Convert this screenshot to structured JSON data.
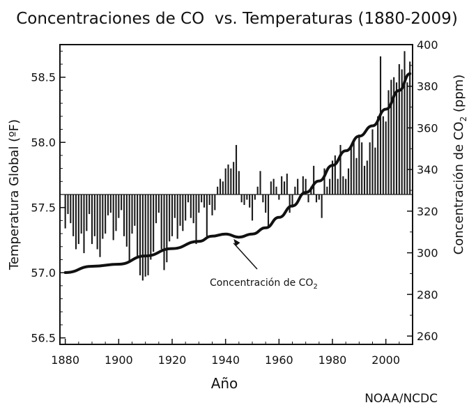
{
  "chart_data": {
    "type": "bar",
    "title": "Concentraciones de CO  vs. Temperaturas (1880-2009)",
    "xlabel": "Año",
    "ylabel_left": "Temperatura Global (ºF)",
    "ylabel_right_main": "Concentración de CO",
    "ylabel_right_sub": "2",
    "ylabel_right_end": " (ppm)",
    "xlim": [
      1878,
      2010
    ],
    "ylim_left": [
      56.45,
      58.75
    ],
    "ylim_right": [
      256,
      400
    ],
    "x_ticks": [
      "1880",
      "1900",
      "1920",
      "1940",
      "1960",
      "1980",
      "2000"
    ],
    "y_left_ticks": [
      "56.5",
      "57.0",
      "57.5",
      "58.0",
      "58.5"
    ],
    "y_right_ticks": [
      "260",
      "280",
      "300",
      "320",
      "340",
      "360",
      "380",
      "400"
    ],
    "bar_baseline": 57.6,
    "annotation": {
      "text": "Concentración de CO",
      "sub": "2",
      "arrow_target": [
        1943,
        308
      ]
    },
    "source": "NOAA/NCDC",
    "series": [
      {
        "name": "Temperatura Global (ºF)",
        "axis": "left",
        "x": [
          1880,
          1881,
          1882,
          1883,
          1884,
          1885,
          1886,
          1887,
          1888,
          1889,
          1890,
          1891,
          1892,
          1893,
          1894,
          1895,
          1896,
          1897,
          1898,
          1899,
          1900,
          1901,
          1902,
          1903,
          1904,
          1905,
          1906,
          1907,
          1908,
          1909,
          1910,
          1911,
          1912,
          1913,
          1914,
          1915,
          1916,
          1917,
          1918,
          1919,
          1920,
          1921,
          1922,
          1923,
          1924,
          1925,
          1926,
          1927,
          1928,
          1929,
          1930,
          1931,
          1932,
          1933,
          1934,
          1935,
          1936,
          1937,
          1938,
          1939,
          1940,
          1941,
          1942,
          1943,
          1944,
          1945,
          1946,
          1947,
          1948,
          1949,
          1950,
          1951,
          1952,
          1953,
          1954,
          1955,
          1956,
          1957,
          1958,
          1959,
          1960,
          1961,
          1962,
          1963,
          1964,
          1965,
          1966,
          1967,
          1968,
          1969,
          1970,
          1971,
          1972,
          1973,
          1974,
          1975,
          1976,
          1977,
          1978,
          1979,
          1980,
          1981,
          1982,
          1983,
          1984,
          1985,
          1986,
          1987,
          1988,
          1989,
          1990,
          1991,
          1992,
          1993,
          1994,
          1995,
          1996,
          1997,
          1998,
          1999,
          2000,
          2001,
          2002,
          2003,
          2004,
          2005,
          2006,
          2007,
          2008,
          2009
        ],
        "values": [
          57.34,
          57.45,
          57.38,
          57.28,
          57.18,
          57.22,
          57.3,
          57.15,
          57.32,
          57.45,
          57.22,
          57.28,
          57.18,
          57.12,
          57.26,
          57.3,
          57.44,
          57.46,
          57.25,
          57.32,
          57.42,
          57.48,
          57.28,
          57.2,
          57.08,
          57.3,
          57.36,
          57.12,
          56.98,
          56.94,
          56.97,
          56.98,
          57.1,
          57.16,
          57.38,
          57.46,
          57.18,
          57.02,
          57.08,
          57.24,
          57.28,
          57.42,
          57.26,
          57.36,
          57.32,
          57.4,
          57.54,
          57.42,
          57.38,
          57.22,
          57.46,
          57.54,
          57.5,
          57.28,
          57.52,
          57.44,
          57.48,
          57.66,
          57.72,
          57.7,
          57.8,
          57.83,
          57.8,
          57.85,
          57.98,
          57.78,
          57.54,
          57.52,
          57.56,
          57.5,
          57.4,
          57.56,
          57.66,
          57.78,
          57.54,
          57.46,
          57.34,
          57.7,
          57.72,
          57.66,
          57.56,
          57.74,
          57.7,
          57.76,
          57.46,
          57.5,
          57.66,
          57.72,
          57.58,
          57.74,
          57.72,
          57.54,
          57.66,
          57.82,
          57.54,
          57.56,
          57.42,
          57.8,
          57.66,
          57.72,
          57.86,
          57.9,
          57.72,
          57.98,
          57.74,
          57.72,
          57.8,
          57.96,
          58.02,
          57.88,
          58.06,
          58.0,
          57.82,
          57.86,
          58.0,
          58.1,
          57.96,
          58.2,
          58.66,
          58.2,
          58.16,
          58.4,
          58.48,
          58.5,
          58.46,
          58.6,
          58.56,
          58.7,
          58.46,
          58.62
        ]
      },
      {
        "name": "Concentración de CO2",
        "axis": "right",
        "x": [
          1880,
          1890,
          1900,
          1910,
          1920,
          1930,
          1935,
          1940,
          1945,
          1950,
          1955,
          1960,
          1965,
          1970,
          1975,
          1980,
          1985,
          1990,
          1995,
          2000,
          2005,
          2009
        ],
        "values": [
          290.5,
          293.5,
          294.5,
          298.5,
          302,
          305.5,
          308,
          309,
          307.5,
          309,
          312,
          317,
          322.5,
          329,
          334.5,
          342,
          349,
          356,
          361,
          369,
          378,
          386
        ]
      }
    ]
  }
}
